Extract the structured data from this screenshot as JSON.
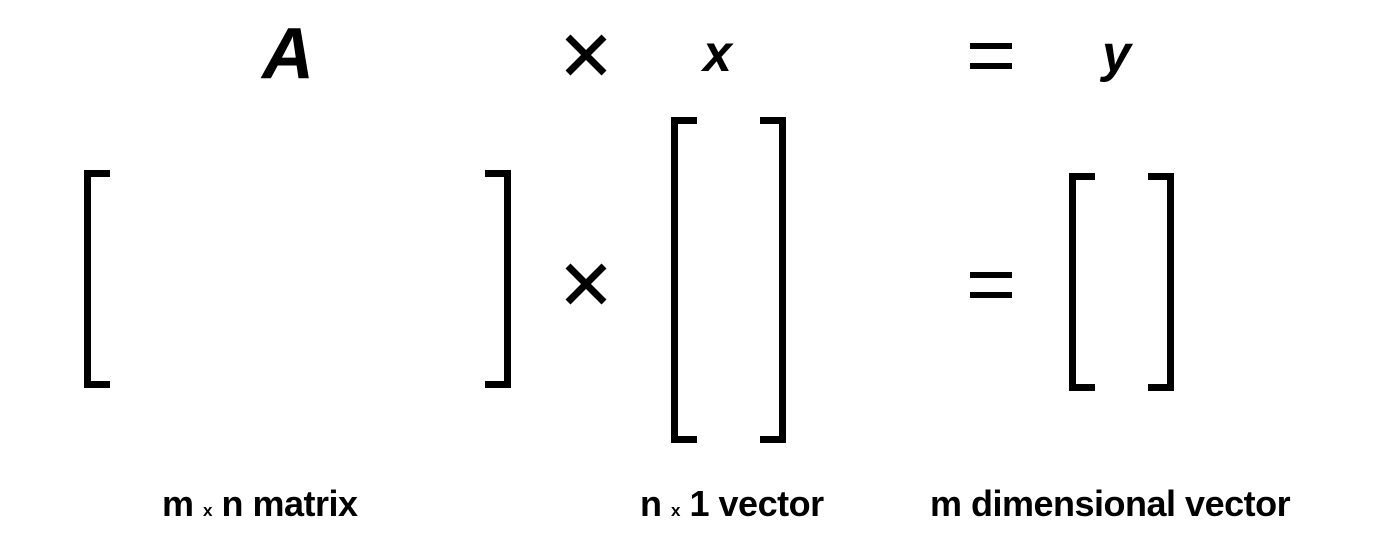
{
  "top_row": {
    "matrix_symbol": "A",
    "vector_symbol": "x",
    "result_symbol": "y"
  },
  "captions": {
    "matrix": {
      "dim_m": "m",
      "times": "x",
      "dim_n": "n matrix"
    },
    "vector_x": {
      "dim_n": "n",
      "times": "x",
      "dim_1": "1 vector"
    },
    "vector_y": "m dimensional vector"
  },
  "colors": {
    "ink": "#000000",
    "background": "#ffffff"
  }
}
